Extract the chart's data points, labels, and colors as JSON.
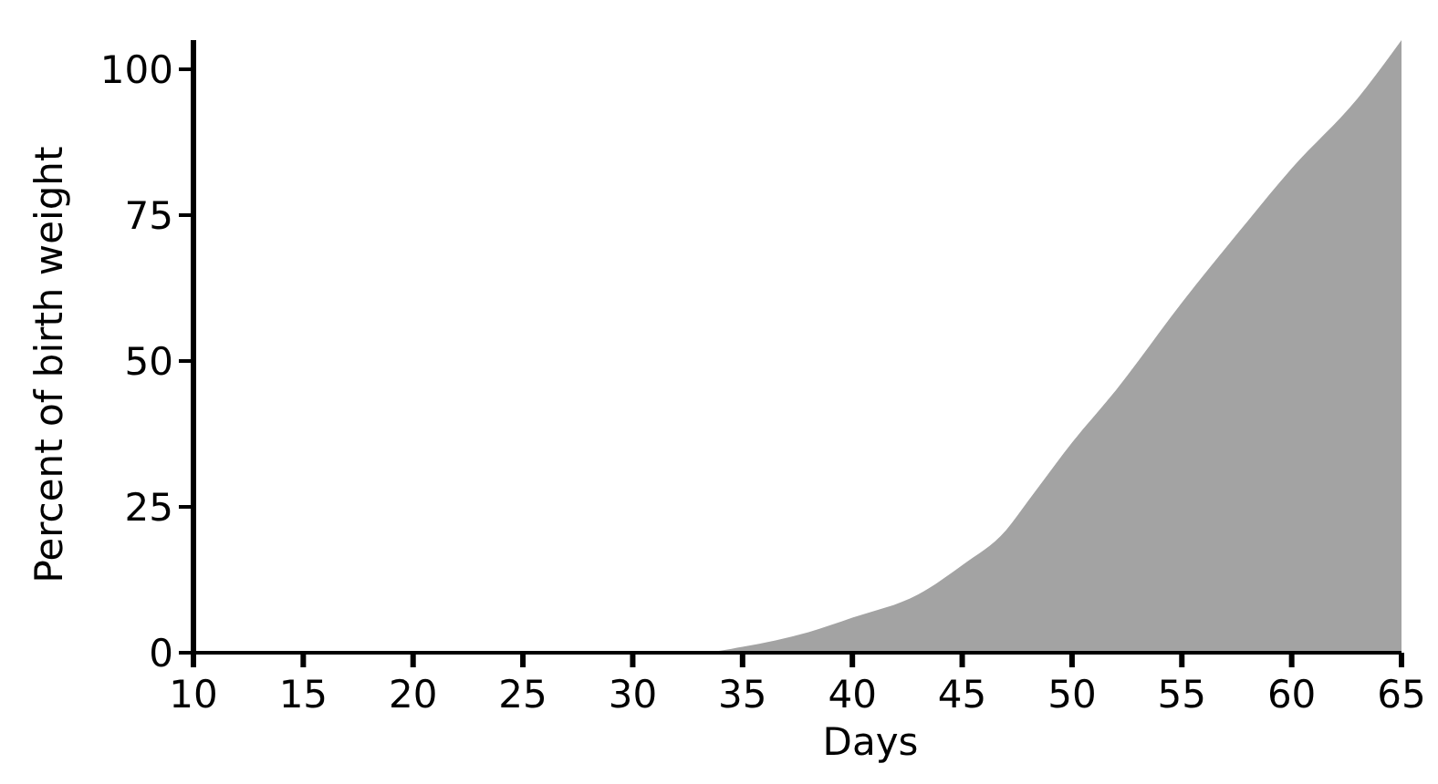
{
  "chart_data": {
    "type": "area",
    "xlabel": "Days",
    "ylabel": "Percent of birth weight",
    "x": [
      10,
      33,
      35,
      38,
      40,
      43,
      45,
      47,
      48,
      50,
      52,
      55,
      58,
      60,
      63,
      65
    ],
    "values": [
      0,
      0,
      1,
      3.5,
      6,
      10,
      15,
      21,
      26,
      36,
      45,
      60,
      74,
      83,
      95,
      105
    ],
    "color": "#a3a3a3",
    "xlim": [
      10,
      65
    ],
    "xticks": [
      10,
      15,
      20,
      25,
      30,
      35,
      40,
      45,
      50,
      55,
      60,
      65
    ],
    "ylim": [
      0,
      105
    ],
    "yticks": [
      0,
      25,
      50,
      75,
      100
    ],
    "grid": false
  }
}
